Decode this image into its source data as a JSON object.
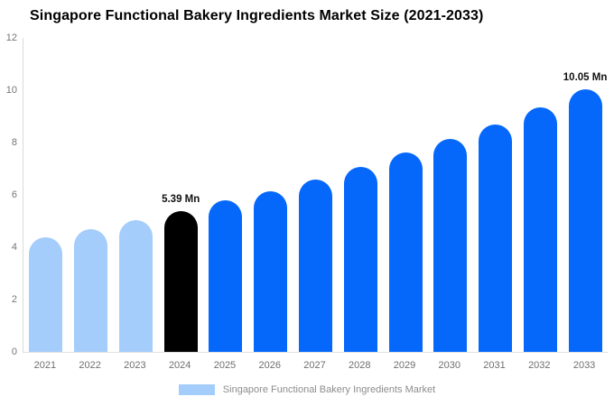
{
  "chart_data": {
    "type": "bar",
    "title": "Singapore Functional Bakery Ingredients Market Size (2021-2033)",
    "xlabel": "",
    "ylabel": "",
    "ylim": [
      0,
      12
    ],
    "yticks": [
      0,
      2,
      4,
      6,
      8,
      10,
      12
    ],
    "grid": false,
    "legend_position": "bottom-center",
    "unit": "Mn",
    "categories": [
      "2021",
      "2022",
      "2023",
      "2024",
      "2025",
      "2026",
      "2027",
      "2028",
      "2029",
      "2030",
      "2031",
      "2032",
      "2033"
    ],
    "points": [
      {
        "year": "2021",
        "value": 4.38,
        "segment": "historical",
        "label": ""
      },
      {
        "year": "2022",
        "value": 4.69,
        "segment": "historical",
        "label": ""
      },
      {
        "year": "2023",
        "value": 5.03,
        "segment": "historical",
        "label": ""
      },
      {
        "year": "2024",
        "value": 5.39,
        "segment": "base",
        "label": "5.39 Mn"
      },
      {
        "year": "2025",
        "value": 5.78,
        "segment": "forecast",
        "label": ""
      },
      {
        "year": "2026",
        "value": 6.15,
        "segment": "forecast",
        "label": ""
      },
      {
        "year": "2027",
        "value": 6.6,
        "segment": "forecast",
        "label": ""
      },
      {
        "year": "2028",
        "value": 7.08,
        "segment": "forecast",
        "label": ""
      },
      {
        "year": "2029",
        "value": 7.62,
        "segment": "forecast",
        "label": ""
      },
      {
        "year": "2030",
        "value": 8.15,
        "segment": "forecast",
        "label": ""
      },
      {
        "year": "2031",
        "value": 8.7,
        "segment": "forecast",
        "label": ""
      },
      {
        "year": "2032",
        "value": 9.35,
        "segment": "forecast",
        "label": ""
      },
      {
        "year": "2033",
        "value": 10.05,
        "segment": "forecast",
        "label": "10.05 Mn"
      }
    ],
    "colors": {
      "historical": "#a4cdfb",
      "base": "#000000",
      "forecast": "#0568fb",
      "axis_line": "#d9d9d9",
      "tick_text": "#757575",
      "value_label_text": "#111111"
    }
  },
  "legend": {
    "label": "Singapore Functional Bakery Ingredients Market",
    "swatch_color": "#a4cdfb"
  }
}
